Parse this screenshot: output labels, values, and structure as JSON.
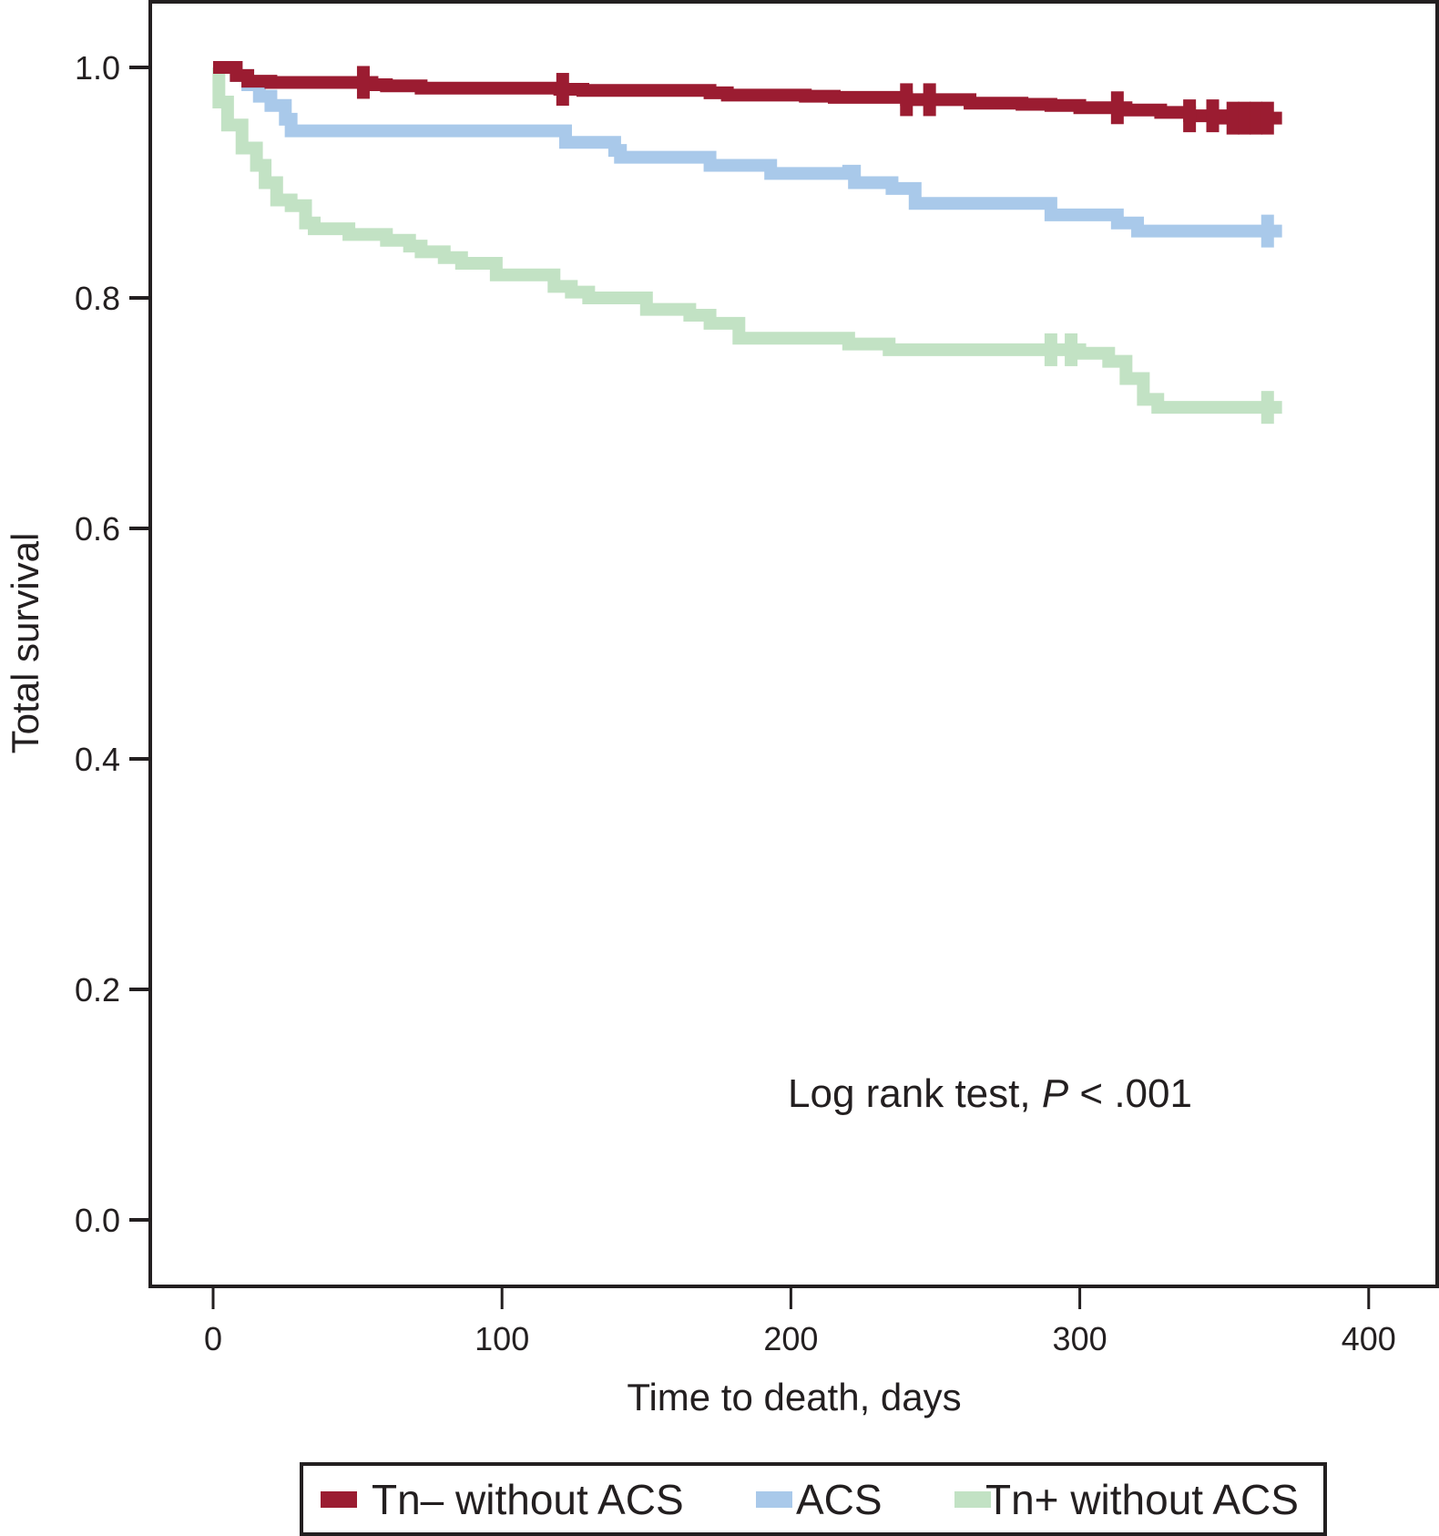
{
  "chart_data": {
    "type": "line",
    "subtype": "kaplan-meier",
    "title": "",
    "xlabel": "Time to death, days",
    "ylabel": "Total survival",
    "xlim": [
      -22,
      420
    ],
    "ylim": [
      -0.05,
      1.08
    ],
    "xticks": [
      0,
      100,
      200,
      300,
      400
    ],
    "xtick_labels": [
      "0",
      "100",
      "200",
      "300",
      "400"
    ],
    "yticks": [
      0.0,
      0.2,
      0.4,
      0.6,
      0.8,
      1.0
    ],
    "ytick_labels": [
      "0.0",
      "0.2",
      "0.4",
      "0.6",
      "0.8",
      "1.0"
    ],
    "grid": false,
    "legend_position": "bottom",
    "annotation": {
      "prefix": "Log rank test, ",
      "italic": "P",
      "suffix": " < .001"
    },
    "series": [
      {
        "name": "Tn– without ACS",
        "color": "#9b1c31",
        "steps": [
          [
            0,
            1.0
          ],
          [
            8,
            0.993
          ],
          [
            12,
            0.988
          ],
          [
            20,
            0.987
          ],
          [
            55,
            0.985
          ],
          [
            60,
            0.984
          ],
          [
            72,
            0.982
          ],
          [
            120,
            0.981
          ],
          [
            128,
            0.98
          ],
          [
            150,
            0.98
          ],
          [
            172,
            0.978
          ],
          [
            178,
            0.976
          ],
          [
            205,
            0.975
          ],
          [
            215,
            0.974
          ],
          [
            240,
            0.972
          ],
          [
            252,
            0.972
          ],
          [
            262,
            0.969
          ],
          [
            280,
            0.968
          ],
          [
            290,
            0.967
          ],
          [
            300,
            0.965
          ],
          [
            316,
            0.963
          ],
          [
            328,
            0.961
          ],
          [
            338,
            0.958
          ],
          [
            350,
            0.956
          ],
          [
            370,
            0.956
          ]
        ],
        "censored": [
          52,
          121,
          240,
          248,
          313,
          338,
          346,
          353,
          357,
          361,
          365
        ]
      },
      {
        "name": "ACS",
        "color": "#a9c9ea",
        "steps": [
          [
            0,
            1.0
          ],
          [
            8,
            0.993
          ],
          [
            12,
            0.985
          ],
          [
            16,
            0.975
          ],
          [
            20,
            0.967
          ],
          [
            25,
            0.955
          ],
          [
            27,
            0.945
          ],
          [
            122,
            0.935
          ],
          [
            139,
            0.928
          ],
          [
            141,
            0.922
          ],
          [
            172,
            0.915
          ],
          [
            193,
            0.908
          ],
          [
            220,
            0.91
          ],
          [
            222,
            0.9
          ],
          [
            235,
            0.895
          ],
          [
            243,
            0.882
          ],
          [
            290,
            0.872
          ],
          [
            313,
            0.865
          ],
          [
            320,
            0.858
          ],
          [
            370,
            0.858
          ]
        ],
        "censored": [
          365
        ]
      },
      {
        "name": "Tn+ without ACS",
        "color": "#c2e2c4",
        "steps": [
          [
            0,
            1.0
          ],
          [
            2,
            0.97
          ],
          [
            5,
            0.95
          ],
          [
            10,
            0.93
          ],
          [
            15,
            0.915
          ],
          [
            18,
            0.9
          ],
          [
            22,
            0.885
          ],
          [
            27,
            0.88
          ],
          [
            32,
            0.865
          ],
          [
            35,
            0.86
          ],
          [
            47,
            0.855
          ],
          [
            60,
            0.85
          ],
          [
            68,
            0.845
          ],
          [
            72,
            0.84
          ],
          [
            80,
            0.835
          ],
          [
            86,
            0.83
          ],
          [
            98,
            0.82
          ],
          [
            118,
            0.81
          ],
          [
            124,
            0.805
          ],
          [
            130,
            0.8
          ],
          [
            150,
            0.79
          ],
          [
            165,
            0.785
          ],
          [
            172,
            0.778
          ],
          [
            182,
            0.765
          ],
          [
            220,
            0.76
          ],
          [
            234,
            0.755
          ],
          [
            290,
            0.755
          ],
          [
            300,
            0.752
          ],
          [
            310,
            0.745
          ],
          [
            316,
            0.73
          ],
          [
            322,
            0.712
          ],
          [
            327,
            0.705
          ],
          [
            370,
            0.705
          ]
        ],
        "censored": [
          290,
          297,
          365
        ]
      }
    ]
  }
}
